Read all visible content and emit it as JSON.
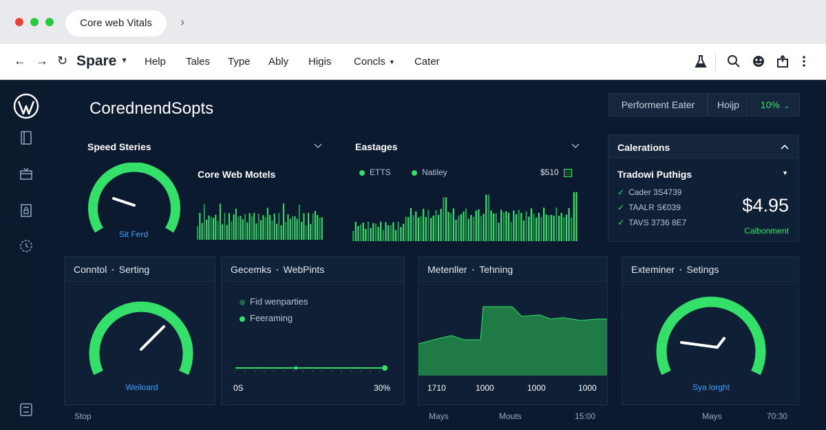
{
  "browser": {
    "tab_title": "Core web Vitals",
    "dot_colors": [
      "#ea4335",
      "#27c93f",
      "#27c93f"
    ]
  },
  "nav": {
    "brand": "Spare",
    "menu": [
      "Help",
      "Tales",
      "Type",
      "Ably",
      "Higis",
      "Concls",
      "Cater"
    ],
    "menu_dropdown_index": 5,
    "controls": [
      "back-arrow-icon",
      "forward-arrow-icon",
      "reload-icon"
    ],
    "right_icons": [
      "flask-icon",
      "search-icon",
      "face-icon",
      "share-box-icon",
      "more-vertical-icon"
    ]
  },
  "sidebar": {
    "icons": [
      "wordpress-logo",
      "book-icon",
      "gift-icon",
      "document-lock-icon",
      "clock-badge-icon",
      "folder-icon"
    ]
  },
  "header": {
    "title": "CorednendSopts",
    "buttons": [
      "Performent Eater",
      "Hoijp",
      "10%"
    ]
  },
  "speed": {
    "section_title": "Speed Steries",
    "sub_title": "Core Web Motels",
    "gauge_label": "Sit Ferd",
    "gauge_level": 0.45
  },
  "eastages": {
    "section_title": "Eastages",
    "legend": [
      "ETTS",
      "Natiley"
    ],
    "value": "$510"
  },
  "calerations": {
    "title": "Calerations",
    "sub_title": "Tradowi Puthigs",
    "items": [
      "Cader 3S4739",
      "TAALR S€039",
      "TAVS 3736 8E7"
    ],
    "price": "$4.95",
    "price_sub": "Calbonment"
  },
  "panels": [
    {
      "head_a": "Conntol",
      "head_b": "Serting",
      "gauge_label": "Weiloard",
      "gauge_level": 0.6
    },
    {
      "head_a": "Gecemks",
      "head_b": "WebPints",
      "legend": [
        "Fid wenparties",
        "Feeraming"
      ],
      "axis_left": "0S",
      "axis_right": "30%"
    },
    {
      "head_a": "Metenller",
      "head_b": "Tehning",
      "axis": [
        "1710",
        "1000",
        "1000",
        "1000"
      ]
    },
    {
      "head_a": "Exteminer",
      "head_b": "Setings",
      "gauge_label": "Sya lorght",
      "gauge_level": 0.35
    }
  ],
  "footer": {
    "left": "Stop",
    "items": [
      "Mays",
      "Mouts",
      "15:00",
      "Mays",
      "70:30"
    ]
  },
  "colors": {
    "accent_green": "#35e06a",
    "bg": "#0b1a2f",
    "panel": "#0f2036",
    "label_blue": "#3fa0ff"
  }
}
